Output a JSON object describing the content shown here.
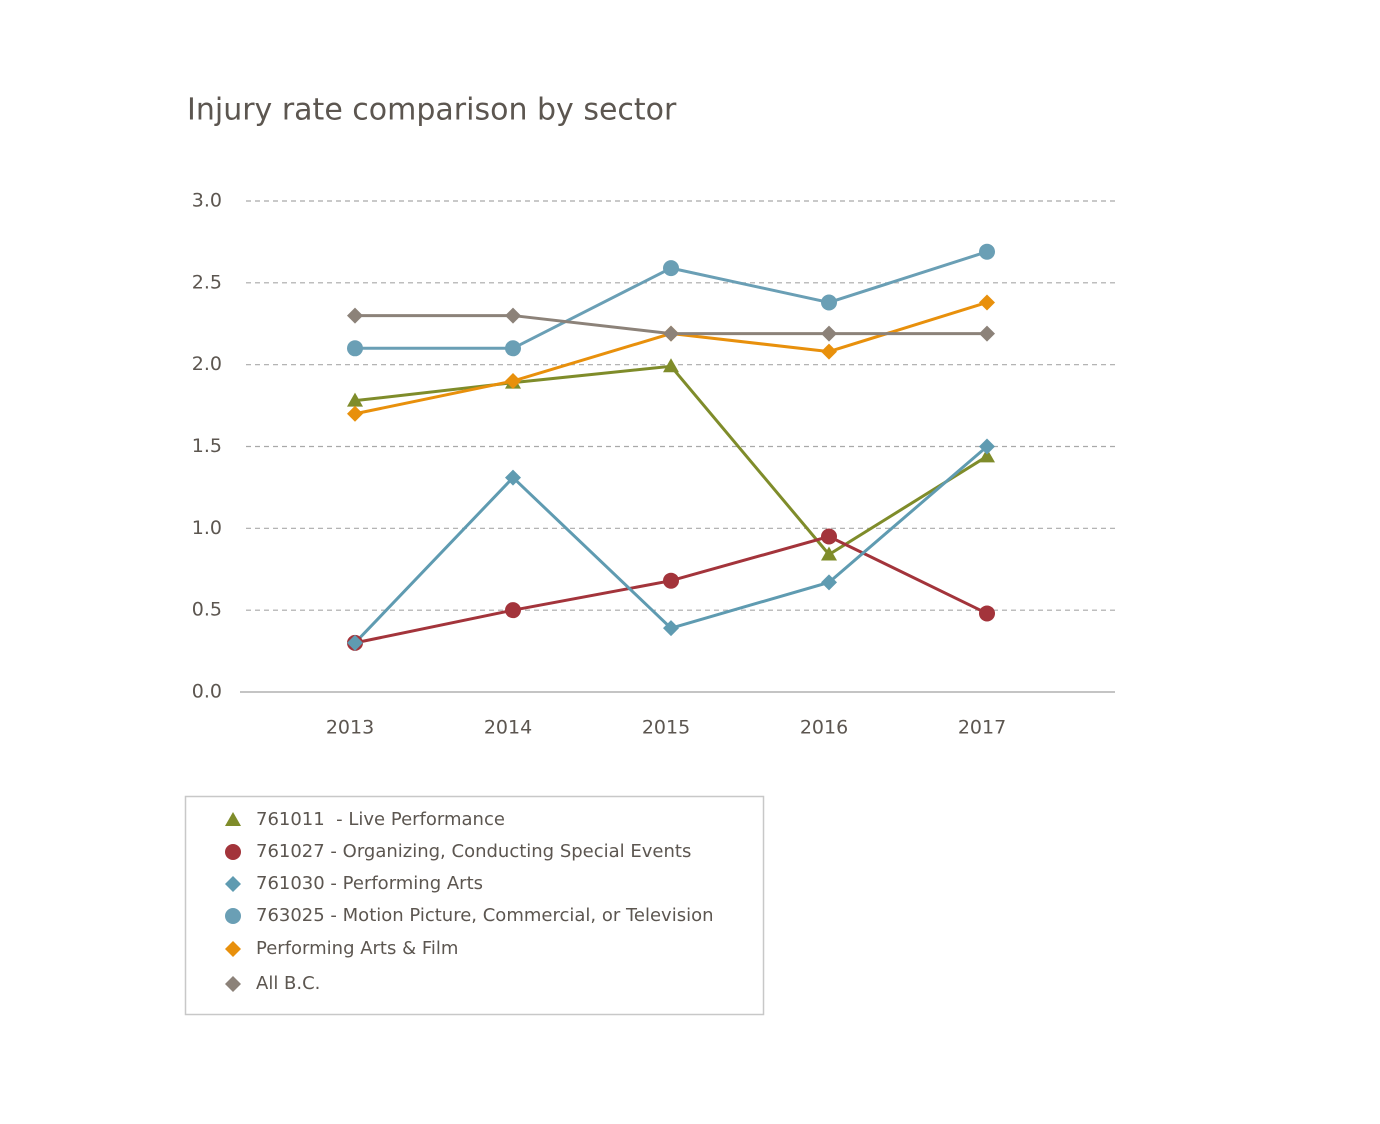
{
  "chart_data": {
    "type": "line",
    "title": "Injury rate comparison by sector",
    "categories": [
      "2013",
      "2014",
      "2015",
      "2016",
      "2017"
    ],
    "ylim": [
      0,
      3
    ],
    "yticks": [
      {
        "value": 0,
        "label": "0.0"
      },
      0.5,
      {
        "value": 1,
        "label": "1.0"
      },
      1.5,
      {
        "value": 2,
        "label": "2.0"
      },
      2.5,
      {
        "value": 3,
        "label": "3.0"
      }
    ],
    "grid": true,
    "series": [
      {
        "name": "761011  - Live Performance",
        "color": "#7f8c2a",
        "marker": "triangle",
        "values": [
          1.78,
          1.89,
          1.99,
          0.84,
          1.44
        ]
      },
      {
        "name": "761027 - Organizing, Conducting Special Events",
        "color": "#a3343b",
        "marker": "circle",
        "values": [
          0.3,
          0.5,
          0.68,
          0.95,
          0.48
        ]
      },
      {
        "name": "761030 - Performing Arts",
        "color": "#5f9bb1",
        "marker": "diamond",
        "values": [
          0.3,
          1.31,
          0.39,
          0.67,
          1.5
        ]
      },
      {
        "name": "763025 - Motion Picture, Commercial, or Television",
        "color": "#6a9fb5",
        "marker": "circle",
        "values": [
          2.1,
          2.1,
          2.59,
          2.38,
          2.69
        ]
      },
      {
        "name": "Performing Arts & Film",
        "color": "#e8900c",
        "marker": "diamond",
        "values": [
          1.7,
          1.9,
          2.19,
          2.08,
          2.38
        ]
      },
      {
        "name": "All B.C.",
        "color": "#8c8279",
        "marker": "diamond",
        "values": [
          2.3,
          2.3,
          2.19,
          2.19,
          2.19
        ]
      }
    ]
  }
}
